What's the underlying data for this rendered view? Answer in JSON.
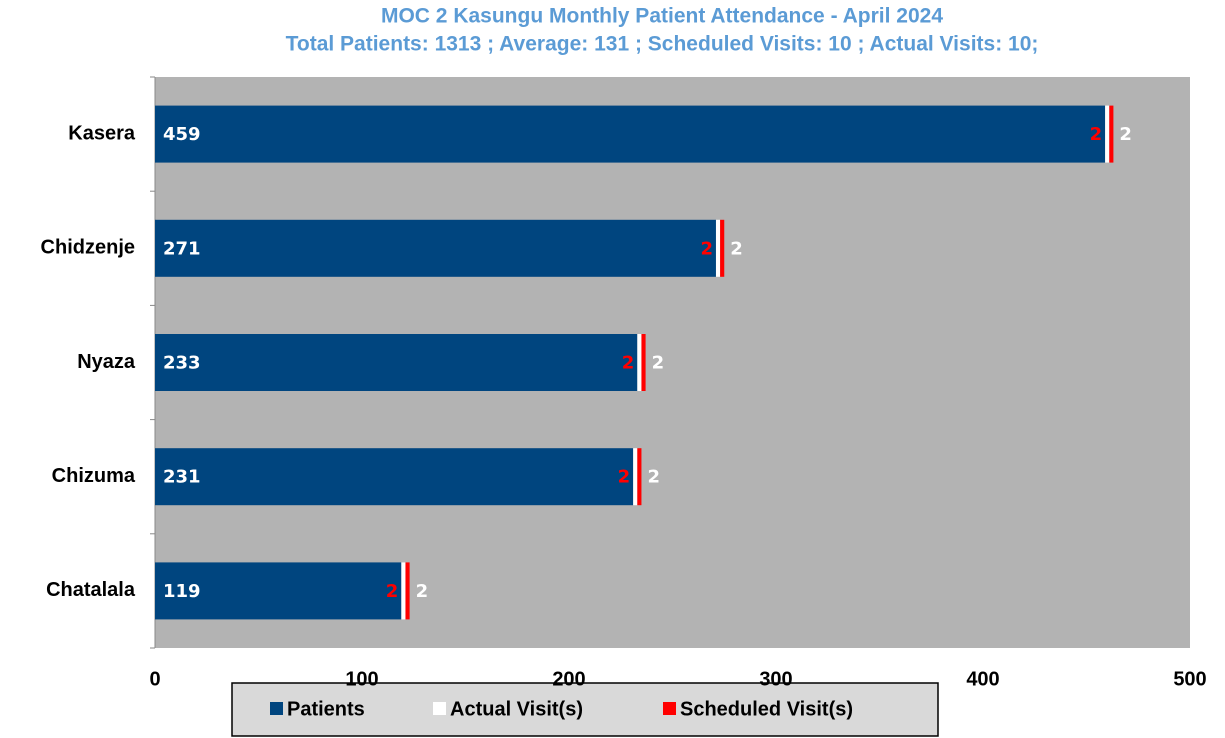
{
  "chart_data": {
    "type": "stacked_barh",
    "title": "MOC 2 Kasungu Monthly Patient Attendance - April 2024",
    "subtitle": "Total Patients: 1313 ; Average: 131 ; Scheduled Visits: 10 ; Actual Visits: 10;",
    "categories": [
      "Kasera",
      "Chidzenje",
      "Nyaza",
      "Chizuma",
      "Chatalala"
    ],
    "series": [
      {
        "name": "Patients",
        "color": "#00457f",
        "values": [
          459,
          271,
          233,
          231,
          119
        ]
      },
      {
        "name": "Actual Visit(s)",
        "color": "#ffffff",
        "values": [
          2,
          2,
          2,
          2,
          2
        ]
      },
      {
        "name": "Scheduled Visit(s)",
        "color": "#ff0000",
        "values": [
          2,
          2,
          2,
          2,
          2
        ]
      }
    ],
    "xlim": [
      0,
      500
    ],
    "xticks": [
      0,
      100,
      200,
      300,
      400,
      500
    ],
    "legend": "bottom"
  }
}
